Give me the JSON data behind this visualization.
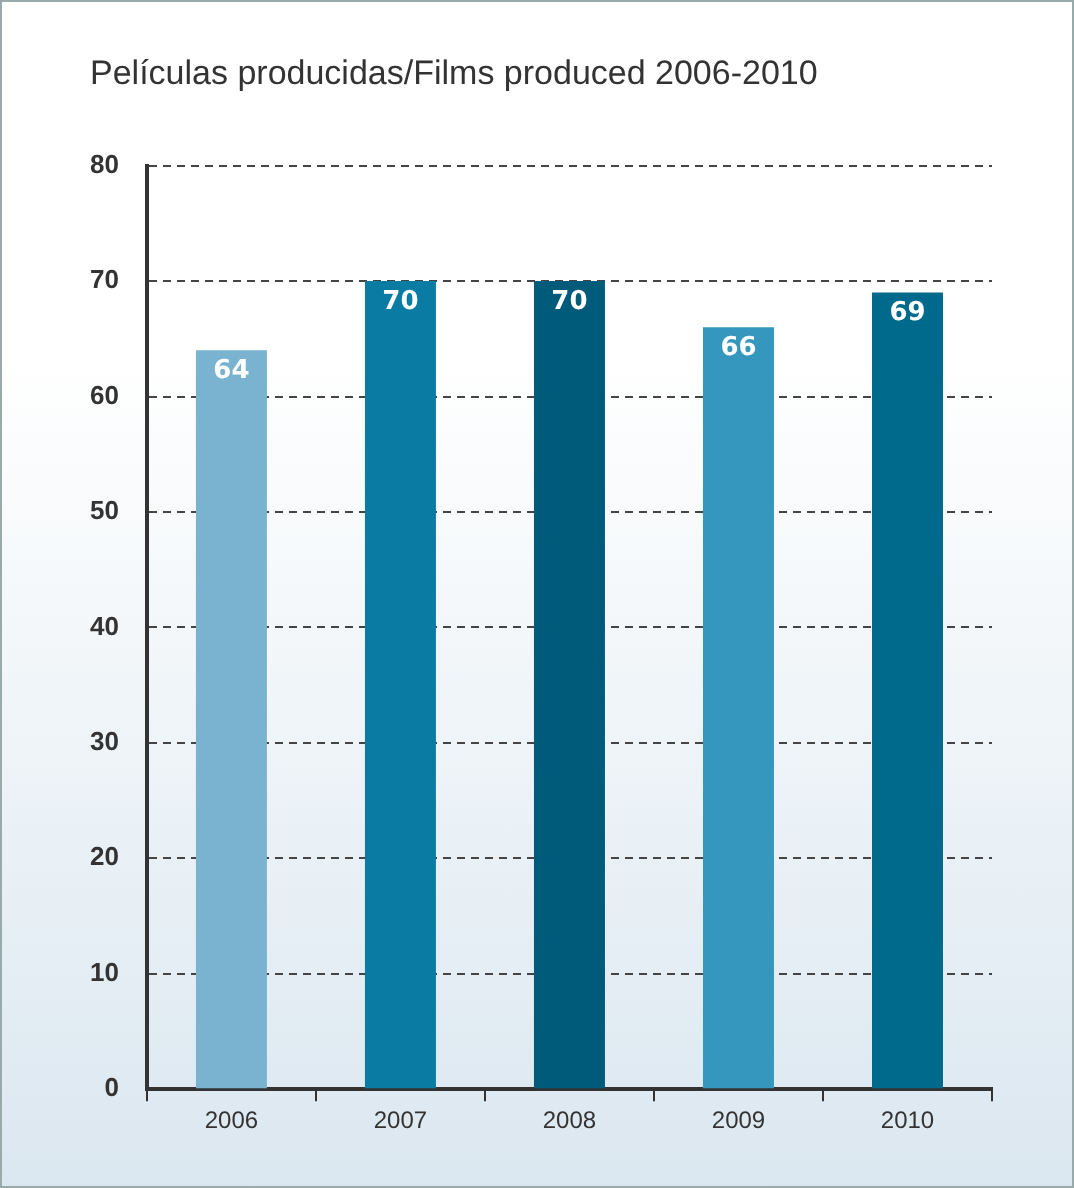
{
  "chart_data": {
    "type": "bar",
    "title": "Películas producidas/Films produced 2006-2010",
    "categories": [
      "2006",
      "2007",
      "2008",
      "2009",
      "2010"
    ],
    "values": [
      64,
      70,
      70,
      66,
      69
    ],
    "colors": [
      "#7ab3d0",
      "#0a7ca3",
      "#005a7a",
      "#3597bd",
      "#006a8c"
    ],
    "ylim": [
      0,
      80
    ],
    "yticks": [
      0,
      10,
      20,
      30,
      40,
      50,
      60,
      70,
      80
    ],
    "grid": "y",
    "data_labels": true
  }
}
